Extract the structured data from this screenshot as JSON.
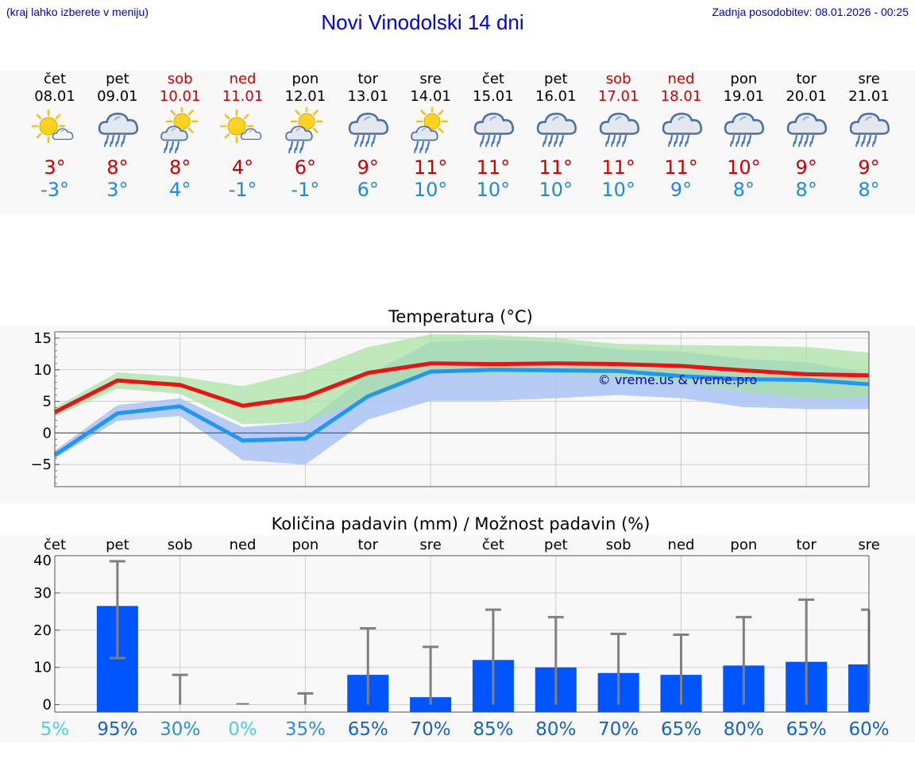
{
  "header": {
    "hint": "(kraj lahko izberete v meniju)",
    "title": "Novi Vinodolski 14 dni",
    "updated": "Zadnja posodobitev: 08.01.2026 - 00:25"
  },
  "colors": {
    "weekend": "#cc0000",
    "max_temp": "#cc0000",
    "min_temp": "#1e88e5",
    "max_line": "#ee1111",
    "min_line": "#2196f3",
    "bar": "#0055ff",
    "band_green": "#a6e3a1",
    "band_blue": "#aac4f5",
    "band_overlap": "#82c7a6"
  },
  "days": [
    {
      "name": "čet",
      "date": "08.01",
      "icon": "sun-partly-cloudy-icon",
      "max": "3°",
      "min": "-3°",
      "weekend": false
    },
    {
      "name": "pet",
      "date": "09.01",
      "icon": "cloud-rain-icon",
      "max": "8°",
      "min": "3°",
      "weekend": false
    },
    {
      "name": "sob",
      "date": "10.01",
      "icon": "sun-cloud-rain-icon",
      "max": "8°",
      "min": "4°",
      "weekend": true
    },
    {
      "name": "ned",
      "date": "11.01",
      "icon": "sun-partly-cloudy-icon",
      "max": "4°",
      "min": "-1°",
      "weekend": true
    },
    {
      "name": "pon",
      "date": "12.01",
      "icon": "sun-cloud-rain-icon",
      "max": "6°",
      "min": "-1°",
      "weekend": false
    },
    {
      "name": "tor",
      "date": "13.01",
      "icon": "cloud-rain-icon",
      "max": "9°",
      "min": "6°",
      "weekend": false
    },
    {
      "name": "sre",
      "date": "14.01",
      "icon": "sun-cloud-rain-icon",
      "max": "11°",
      "min": "10°",
      "weekend": false
    },
    {
      "name": "čet",
      "date": "15.01",
      "icon": "cloud-rain-icon",
      "max": "11°",
      "min": "10°",
      "weekend": false
    },
    {
      "name": "pet",
      "date": "16.01",
      "icon": "cloud-rain-icon",
      "max": "11°",
      "min": "10°",
      "weekend": false
    },
    {
      "name": "sob",
      "date": "17.01",
      "icon": "cloud-rain-icon",
      "max": "11°",
      "min": "10°",
      "weekend": true
    },
    {
      "name": "ned",
      "date": "18.01",
      "icon": "cloud-rain-icon",
      "max": "11°",
      "min": "9°",
      "weekend": true
    },
    {
      "name": "pon",
      "date": "19.01",
      "icon": "cloud-rain-icon",
      "max": "10°",
      "min": "8°",
      "weekend": false
    },
    {
      "name": "tor",
      "date": "20.01",
      "icon": "cloud-rain-icon",
      "max": "9°",
      "min": "8°",
      "weekend": false
    },
    {
      "name": "sre",
      "date": "21.01",
      "icon": "cloud-rain-icon",
      "max": "9°",
      "min": "8°",
      "weekend": false
    }
  ],
  "chart_data": [
    {
      "type": "line",
      "title": "Temperatura (°C)",
      "ylim": [
        -8.5,
        16
      ],
      "yticks": [
        -5,
        0,
        5,
        10,
        15
      ],
      "ytick_labels": [
        "−5",
        "0",
        "5",
        "10",
        "15"
      ],
      "watermark": "© vreme.us & vreme.pro",
      "x": [
        0,
        1,
        2,
        3,
        4,
        5,
        6,
        7,
        8,
        9,
        10,
        11,
        12,
        13
      ],
      "series": [
        {
          "name": "max",
          "values": [
            3.3,
            8.3,
            7.6,
            4.3,
            5.7,
            9.5,
            11.0,
            10.9,
            11.0,
            10.9,
            10.6,
            9.9,
            9.3,
            9.1
          ]
        },
        {
          "name": "min",
          "values": [
            -3.5,
            3.1,
            4.2,
            -1.2,
            -0.9,
            5.8,
            9.7,
            10.0,
            9.9,
            9.8,
            9.0,
            8.5,
            8.4,
            7.7
          ]
        }
      ],
      "max_range_low": [
        2.6,
        7.0,
        6.2,
        1.4,
        1.7,
        5.6,
        9.5,
        9.3,
        9.3,
        8.9,
        8.0,
        6.6,
        5.4,
        5.7
      ],
      "max_range_high": [
        4.0,
        9.6,
        8.9,
        7.4,
        9.8,
        13.6,
        15.6,
        15.5,
        15.0,
        14.1,
        13.9,
        13.8,
        13.6,
        12.7
      ],
      "min_range_low": [
        -4.0,
        1.9,
        2.7,
        -4.3,
        -5.0,
        2.1,
        5.1,
        5.1,
        5.5,
        6.0,
        5.5,
        4.1,
        3.8,
        3.8
      ],
      "min_range_high": [
        -2.8,
        4.4,
        5.5,
        0.9,
        1.7,
        9.2,
        14.4,
        14.8,
        14.4,
        13.2,
        12.9,
        11.7,
        11.2,
        9.5
      ]
    },
    {
      "type": "bar",
      "title": "Količina padavin (mm) / Možnost padavin (%)",
      "ylim": [
        -2,
        40
      ],
      "yticks": [
        0,
        10,
        20,
        30,
        40
      ],
      "ytick_labels": [
        "0",
        "10",
        "20",
        "30",
        "40"
      ],
      "categories": [
        "čet",
        "pet",
        "sob",
        "ned",
        "pon",
        "tor",
        "sre",
        "čet",
        "pet",
        "sob",
        "ned",
        "pon",
        "tor",
        "sre"
      ],
      "values": [
        0,
        26.5,
        0,
        0,
        0,
        8.0,
        2.0,
        12.0,
        10.0,
        8.5,
        8.0,
        10.5,
        11.5,
        10.8
      ],
      "err_high": [
        0,
        38.5,
        8.0,
        0,
        3.0,
        20.5,
        15.5,
        25.5,
        23.5,
        19.0,
        18.8,
        23.5,
        28.2,
        25.5
      ],
      "err_low": [
        0,
        12.5,
        0,
        0,
        0,
        0,
        0,
        0,
        0,
        0,
        0,
        0,
        0,
        0
      ],
      "probability": [
        "5%",
        "95%",
        "30%",
        "0%",
        "35%",
        "65%",
        "70%",
        "85%",
        "80%",
        "70%",
        "65%",
        "80%",
        "65%",
        "60%"
      ],
      "prob_colors": [
        "#4dd0e1",
        "#1565c0",
        "#2a8fd6",
        "#4dd0e1",
        "#2a8fd6",
        "#1565c0",
        "#1565c0",
        "#1565c0",
        "#1565c0",
        "#1565c0",
        "#1565c0",
        "#1565c0",
        "#1565c0",
        "#1565c0"
      ]
    }
  ]
}
